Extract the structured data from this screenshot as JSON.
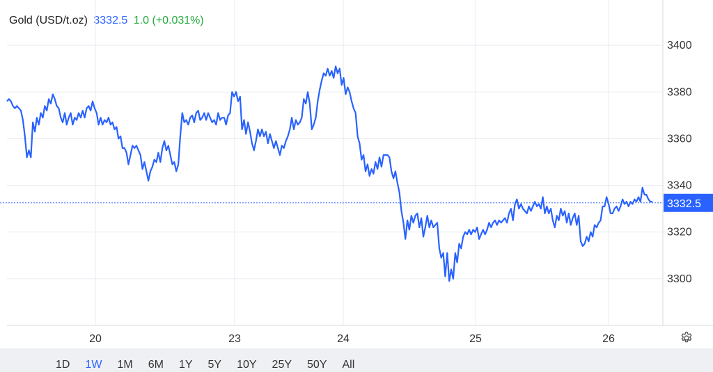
{
  "header": {
    "title": "Gold (USD/t.oz)",
    "price": "3332.5",
    "change": "1.0 (+0.031%)"
  },
  "colors": {
    "line": "#2962ff",
    "price_label_bg": "#2962ff",
    "change": "#22ab3c",
    "grid": "#e8ebf0"
  },
  "ranges": [
    "1D",
    "1W",
    "1M",
    "6M",
    "1Y",
    "5Y",
    "10Y",
    "25Y",
    "50Y",
    "All"
  ],
  "active_range": "1W",
  "settings_icon": "gear-icon",
  "chart_data": {
    "type": "line",
    "series": [
      {
        "values": [
          3376,
          3377,
          3376,
          3374,
          3373,
          3374,
          3373,
          3372,
          3368,
          3361,
          3352,
          3355,
          3352,
          3367,
          3363,
          3369,
          3366,
          3371,
          3369,
          3374,
          3372,
          3377,
          3375,
          3379,
          3377,
          3374,
          3373,
          3369,
          3367,
          3371,
          3366,
          3369,
          3371,
          3366,
          3369,
          3368,
          3371,
          3369,
          3372,
          3369,
          3373,
          3374,
          3372,
          3376,
          3373,
          3371,
          3366,
          3369,
          3366,
          3368,
          3367,
          3369,
          3366,
          3367,
          3364,
          3365,
          3360,
          3361,
          3356,
          3356,
          3354,
          3349,
          3353,
          3357,
          3356,
          3357,
          3355,
          3353,
          3347,
          3350,
          3346,
          3342,
          3346,
          3348,
          3351,
          3350,
          3354,
          3350,
          3356,
          3359,
          3355,
          3357,
          3353,
          3349,
          3350,
          3346,
          3349,
          3361,
          3371,
          3367,
          3368,
          3366,
          3369,
          3370,
          3367,
          3371,
          3372,
          3368,
          3369,
          3371,
          3368,
          3371,
          3369,
          3367,
          3368,
          3366,
          3371,
          3368,
          3369,
          3369,
          3366,
          3370,
          3371,
          3380,
          3378,
          3380,
          3376,
          3378,
          3364,
          3368,
          3362,
          3367,
          3363,
          3358,
          3355,
          3359,
          3364,
          3361,
          3364,
          3361,
          3363,
          3358,
          3362,
          3359,
          3356,
          3359,
          3356,
          3353,
          3357,
          3356,
          3359,
          3361,
          3364,
          3369,
          3364,
          3368,
          3366,
          3367,
          3369,
          3377,
          3375,
          3380,
          3375,
          3364,
          3366,
          3369,
          3376,
          3381,
          3385,
          3388,
          3387,
          3390,
          3387,
          3389,
          3386,
          3391,
          3388,
          3390,
          3383,
          3386,
          3379,
          3382,
          3380,
          3376,
          3373,
          3371,
          3361,
          3358,
          3351,
          3353,
          3346,
          3349,
          3344,
          3347,
          3345,
          3350,
          3347,
          3352,
          3348,
          3353,
          3353,
          3353,
          3352,
          3346,
          3343,
          3346,
          3341,
          3337,
          3329,
          3324,
          3317,
          3325,
          3321,
          3327,
          3324,
          3327,
          3328,
          3322,
          3326,
          3318,
          3322,
          3327,
          3322,
          3325,
          3322,
          3323,
          3324,
          3313,
          3309,
          3311,
          3301,
          3311,
          3299,
          3304,
          3300,
          3311,
          3307,
          3315,
          3313,
          3318,
          3320,
          3319,
          3321,
          3319,
          3321,
          3320,
          3322,
          3317,
          3319,
          3321,
          3319,
          3321,
          3324,
          3322,
          3324,
          3325,
          3323,
          3325,
          3324,
          3325,
          3326,
          3324,
          3328,
          3330,
          3325,
          3332,
          3334,
          3330,
          3332,
          3330,
          3329,
          3328,
          3331,
          3329,
          3331,
          3333,
          3331,
          3332,
          3330,
          3335,
          3328,
          3331,
          3328,
          3330,
          3325,
          3322,
          3327,
          3325,
          3330,
          3327,
          3329,
          3324,
          3328,
          3323,
          3326,
          3328,
          3323,
          3327,
          3316,
          3314,
          3315,
          3318,
          3316,
          3320,
          3318,
          3323,
          3322,
          3324,
          3325,
          3331,
          3331,
          3335,
          3332,
          3328,
          3328,
          3330,
          3331,
          3329,
          3331,
          3334,
          3332,
          3333,
          3331,
          3333,
          3332,
          3334,
          3333,
          3335,
          3333,
          3339,
          3336,
          3336,
          3334,
          3333,
          3333
        ]
      }
    ],
    "x_ticks": [
      "20",
      "23",
      "24",
      "25",
      "26"
    ],
    "y_ticks": [
      3300,
      3320,
      3340,
      3360,
      3380,
      3400
    ],
    "ylim": [
      3280,
      3406
    ],
    "last_value": 3332.5,
    "last_value_label": "3332.5",
    "grid": true
  }
}
